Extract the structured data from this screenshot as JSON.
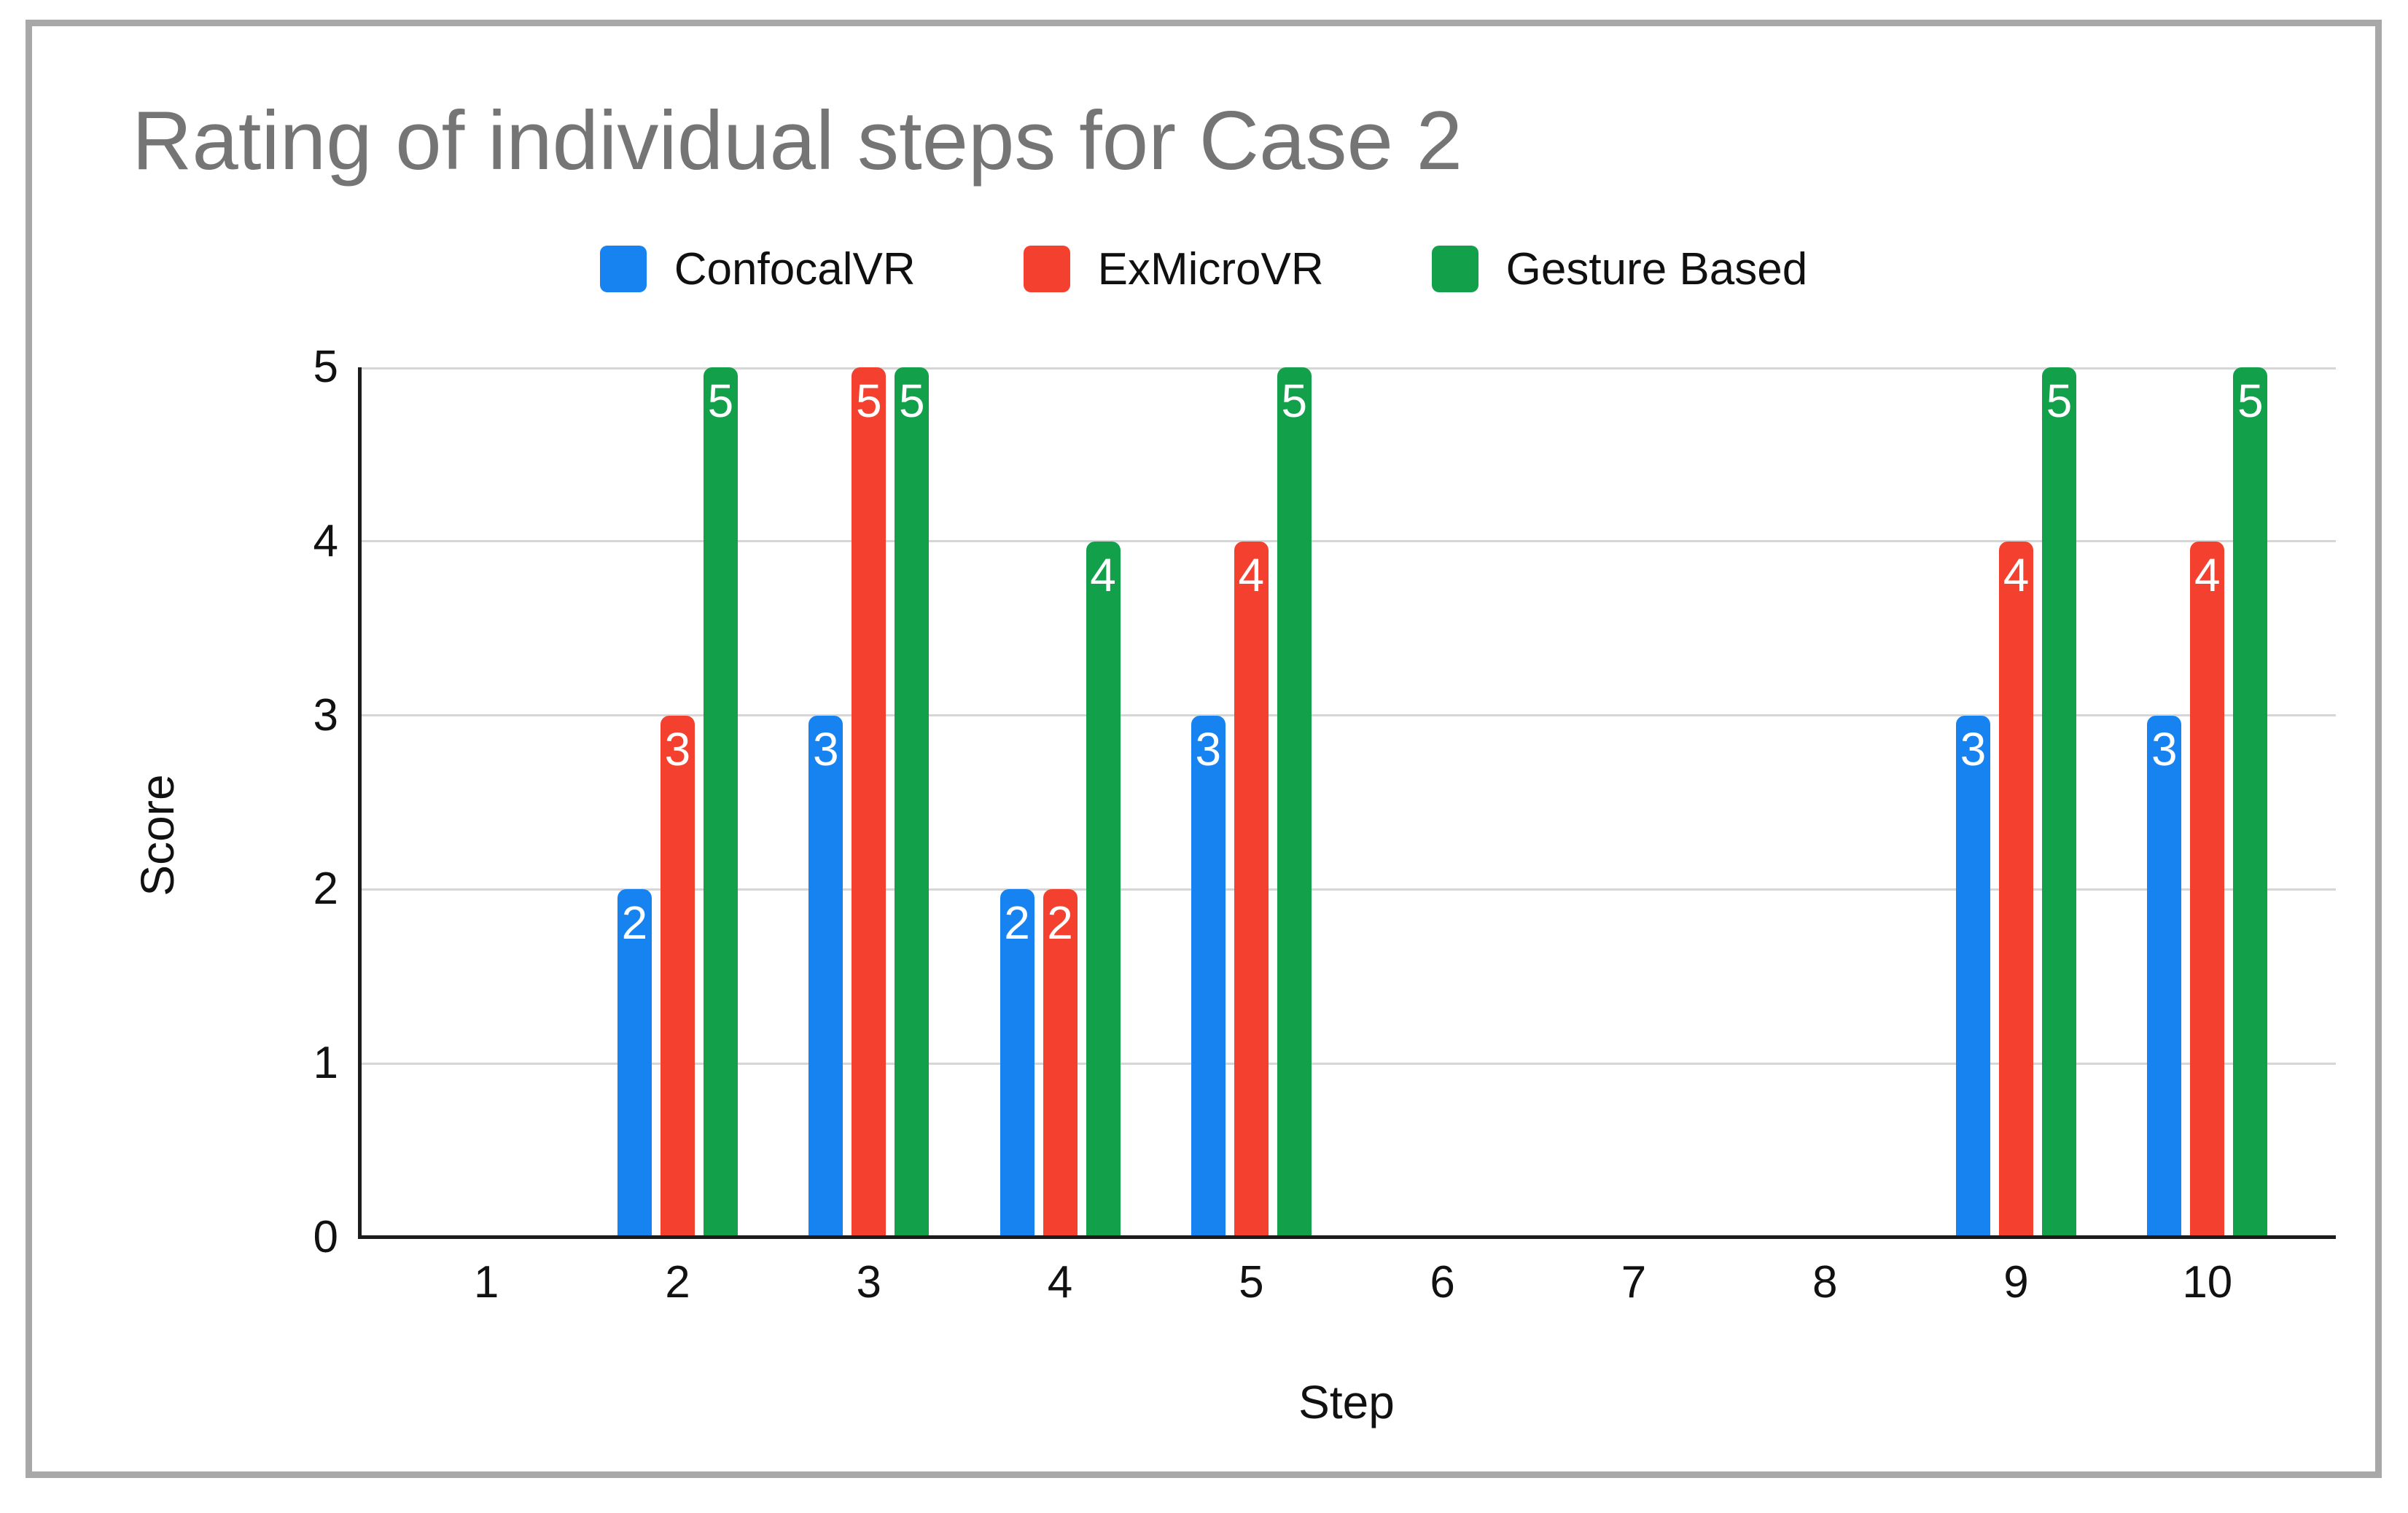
{
  "page": {
    "background": "#ffffff",
    "frame_border_color": "#a8a8a8"
  },
  "chart_data": {
    "type": "bar",
    "title": "Rating of individual steps for Case 2",
    "title_color": "#757575",
    "xlabel": "Step",
    "ylabel": "Score",
    "ylim": [
      0,
      5
    ],
    "yticks": [
      0,
      1,
      2,
      3,
      4,
      5
    ],
    "grid": true,
    "legend_position": "top-center",
    "bar_value_labels": "white numerals inside top of each bar",
    "categories": [
      "1",
      "2",
      "3",
      "4",
      "5",
      "6",
      "7",
      "8",
      "9",
      "10"
    ],
    "series": [
      {
        "name": "ConfocalVR",
        "color": "#1683f1",
        "values": [
          null,
          2,
          3,
          2,
          3,
          null,
          null,
          null,
          3,
          3
        ]
      },
      {
        "name": "ExMicroVR",
        "color": "#f4402e",
        "values": [
          null,
          3,
          5,
          2,
          4,
          null,
          null,
          null,
          4,
          4
        ]
      },
      {
        "name": "Gesture Based",
        "color": "#12a04b",
        "values": [
          null,
          5,
          5,
          4,
          5,
          null,
          null,
          null,
          5,
          5
        ]
      }
    ]
  },
  "axes": {
    "axis_line_color": "#1c1c1c",
    "gridline_color": "#d6d6d6",
    "tick_label_color": "#111111"
  }
}
